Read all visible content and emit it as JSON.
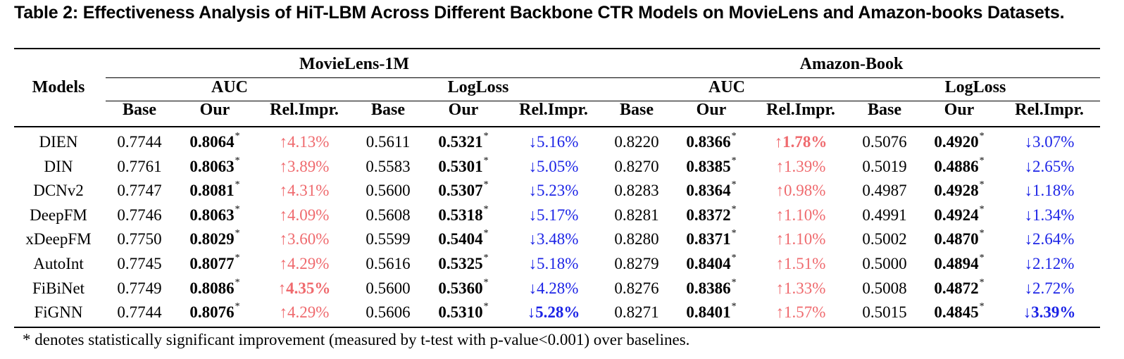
{
  "caption": "Table 2: Effectiveness Analysis of HiT-LBM Across Different Backbone CTR Models on MovieLens and Amazon-books Datasets.",
  "header": {
    "models": "Models",
    "datasets": [
      "MovieLens-1M",
      "Amazon-Book"
    ],
    "metrics": [
      "AUC",
      "LogLoss",
      "AUC",
      "LogLoss"
    ],
    "subcols": [
      "Base",
      "Our",
      "Rel.Impr.",
      "Base",
      "Our",
      "Rel.Impr.",
      "Base",
      "Our",
      "Rel.Impr.",
      "Base",
      "Our",
      "Rel.Impr."
    ]
  },
  "rows": [
    {
      "model": "DIEN",
      "cells": [
        "0.7744",
        "0.8064",
        "↑4.13%",
        "0.5611",
        "0.5321",
        "↓5.16%",
        "0.8220",
        "0.8366",
        "↑1.78%",
        "0.5076",
        "0.4920",
        "↓3.07%"
      ]
    },
    {
      "model": "DIN",
      "cells": [
        "0.7761",
        "0.8063",
        "↑3.89%",
        "0.5583",
        "0.5301",
        "↓5.05%",
        "0.8270",
        "0.8385",
        "↑1.39%",
        "0.5019",
        "0.4886",
        "↓2.65%"
      ]
    },
    {
      "model": "DCNv2",
      "cells": [
        "0.7747",
        "0.8081",
        "↑4.31%",
        "0.5600",
        "0.5307",
        "↓5.23%",
        "0.8283",
        "0.8364",
        "↑0.98%",
        "0.4987",
        "0.4928",
        "↓1.18%"
      ]
    },
    {
      "model": "DeepFM",
      "cells": [
        "0.7746",
        "0.8063",
        "↑4.09%",
        "0.5608",
        "0.5318",
        "↓5.17%",
        "0.8281",
        "0.8372",
        "↑1.10%",
        "0.4991",
        "0.4924",
        "↓1.34%"
      ]
    },
    {
      "model": "xDeepFM",
      "cells": [
        "0.7750",
        "0.8029",
        "↑3.60%",
        "0.5599",
        "0.5404",
        "↓3.48%",
        "0.8280",
        "0.8371",
        "↑1.10%",
        "0.5002",
        "0.4870",
        "↓2.64%"
      ]
    },
    {
      "model": "AutoInt",
      "cells": [
        "0.7745",
        "0.8077",
        "↑4.29%",
        "0.5616",
        "0.5325",
        "↓5.18%",
        "0.8279",
        "0.8404",
        "↑1.51%",
        "0.5000",
        "0.4894",
        "↓2.12%"
      ]
    },
    {
      "model": "FiBiNet",
      "cells": [
        "0.7749",
        "0.8086",
        "↑4.35%",
        "0.5600",
        "0.5360",
        "↓4.28%",
        "0.8276",
        "0.8386",
        "↑1.33%",
        "0.5008",
        "0.4872",
        "↓2.72%"
      ]
    },
    {
      "model": "FiGNN",
      "cells": [
        "0.7744",
        "0.8076",
        "↑4.29%",
        "0.5606",
        "0.5310",
        "↓5.28%",
        "0.8271",
        "0.8401",
        "↑1.57%",
        "0.5015",
        "0.4845",
        "↓3.39%"
      ]
    }
  ],
  "significance_mark": "*",
  "bold_rel_impr": [
    [
      0,
      8
    ],
    [
      6,
      2
    ],
    [
      7,
      5
    ],
    [
      7,
      11
    ]
  ],
  "colors": {
    "improvement_up": "#ef6a6e",
    "improvement_down": "#1c24e6"
  },
  "footnote": "* denotes statistically significant improvement (measured by t-test with p-value<0.001) over baselines."
}
